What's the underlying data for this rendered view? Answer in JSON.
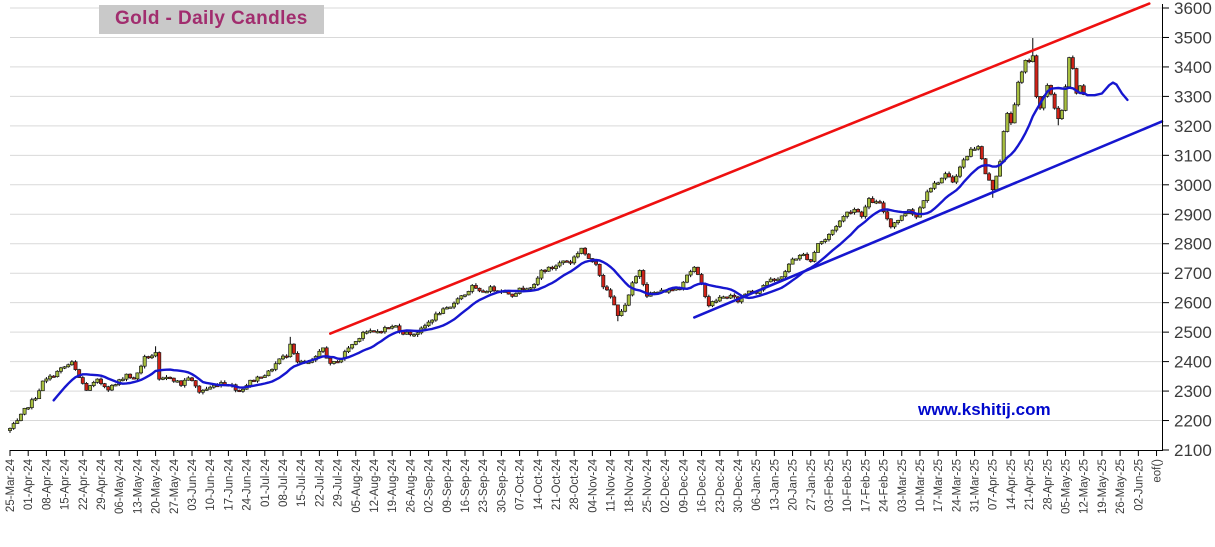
{
  "title": "Gold - Daily Candles",
  "watermark": "www.kshitij.com",
  "colors": {
    "up_candle": "#a7bf3f",
    "down_candle": "#cf2217",
    "candle_border": "#1a1a1a",
    "wick": "#000000",
    "moving_average": "#1616cf",
    "resistance_trendline": "#ee1010",
    "support_trendline": "#1616cf",
    "grid": "#d9d9d9",
    "axis": "#000000",
    "tick_text": "#3c3c3c",
    "title_text": "#a12d6e",
    "title_background": "#c9c9c9",
    "watermark_text": "#0008cc"
  },
  "chart_data": {
    "type": "candlestick",
    "title": "Gold - Daily Candles",
    "xlabel": "",
    "ylabel": "",
    "ylim": [
      2100,
      3600
    ],
    "grid": "horizontal-only",
    "legend": "none",
    "y_tick_step": 100,
    "y_tick_labels": [
      "3600",
      "3500",
      "3400",
      "3300",
      "3200",
      "3100",
      "3000",
      "2900",
      "2800",
      "2700",
      "2600",
      "2500",
      "2400",
      "2300",
      "2200",
      "2100"
    ],
    "x_tick_labels": [
      "25-Mar-24",
      "01-Apr-24",
      "08-Apr-24",
      "15-Apr-24",
      "22-Apr-24",
      "29-Apr-24",
      "06-May-24",
      "13-May-24",
      "20-May-24",
      "27-May-24",
      "03-Jun-24",
      "10-Jun-24",
      "17-Jun-24",
      "24-Jun-24",
      "01-Jul-24",
      "08-Jul-24",
      "15-Jul-24",
      "22-Jul-24",
      "29-Jul-24",
      "05-Aug-24",
      "12-Aug-24",
      "19-Aug-24",
      "26-Aug-24",
      "02-Sep-24",
      "09-Sep-24",
      "16-Sep-24",
      "23-Sep-24",
      "30-Sep-24",
      "07-Oct-24",
      "14-Oct-24",
      "21-Oct-24",
      "28-Oct-24",
      "04-Nov-24",
      "11-Nov-24",
      "18-Nov-24",
      "25-Nov-24",
      "02-Dec-24",
      "09-Dec-24",
      "16-Dec-24",
      "23-Dec-24",
      "30-Dec-24",
      "06-Jan-25",
      "13-Jan-25",
      "20-Jan-25",
      "27-Jan-25",
      "03-Feb-25",
      "10-Feb-25",
      "17-Feb-25",
      "24-Feb-25",
      "03-Mar-25",
      "10-Mar-25",
      "17-Mar-25",
      "24-Mar-25",
      "31-Mar-25",
      "07-Apr-25",
      "14-Apr-25",
      "21-Apr-25",
      "28-Apr-25",
      "05-May-25",
      "12-May-25",
      "19-May-25",
      "26-May-25",
      "02-Jun-25",
      "eof()"
    ],
    "slots_per_week": 5,
    "slot_span": 316.5,
    "candle_count": 296,
    "noise_seed": 7,
    "noise_amp": 13,
    "anchors": [
      [
        0,
        2172
      ],
      [
        2,
        2195
      ],
      [
        4,
        2235
      ],
      [
        7,
        2280
      ],
      [
        9,
        2330
      ],
      [
        12,
        2355
      ],
      [
        14,
        2375
      ],
      [
        17,
        2395
      ],
      [
        19,
        2345
      ],
      [
        21,
        2305
      ],
      [
        24,
        2335
      ],
      [
        27,
        2310
      ],
      [
        29,
        2322
      ],
      [
        32,
        2358
      ],
      [
        34,
        2338
      ],
      [
        37,
        2412
      ],
      [
        40,
        2425
      ],
      [
        41,
        2335
      ],
      [
        44,
        2348
      ],
      [
        47,
        2322
      ],
      [
        49,
        2348
      ],
      [
        52,
        2298
      ],
      [
        55,
        2312
      ],
      [
        58,
        2330
      ],
      [
        61,
        2318
      ],
      [
        63,
        2300
      ],
      [
        66,
        2332
      ],
      [
        69,
        2352
      ],
      [
        71,
        2362
      ],
      [
        74,
        2408
      ],
      [
        76,
        2422
      ],
      [
        77,
        2465
      ],
      [
        79,
        2398
      ],
      [
        82,
        2394
      ],
      [
        84,
        2412
      ],
      [
        86,
        2446
      ],
      [
        88,
        2388
      ],
      [
        91,
        2412
      ],
      [
        93,
        2448
      ],
      [
        95,
        2468
      ],
      [
        97,
        2502
      ],
      [
        100,
        2498
      ],
      [
        103,
        2512
      ],
      [
        106,
        2520
      ],
      [
        108,
        2498
      ],
      [
        111,
        2494
      ],
      [
        113,
        2508
      ],
      [
        116,
        2546
      ],
      [
        118,
        2568
      ],
      [
        121,
        2582
      ],
      [
        123,
        2618
      ],
      [
        125,
        2628
      ],
      [
        127,
        2654
      ],
      [
        129,
        2634
      ],
      [
        132,
        2648
      ],
      [
        135,
        2642
      ],
      [
        138,
        2628
      ],
      [
        141,
        2652
      ],
      [
        144,
        2656
      ],
      [
        146,
        2708
      ],
      [
        149,
        2718
      ],
      [
        152,
        2742
      ],
      [
        154,
        2738
      ],
      [
        157,
        2786
      ],
      [
        159,
        2744
      ],
      [
        161,
        2736
      ],
      [
        163,
        2658
      ],
      [
        165,
        2618
      ],
      [
        167,
        2562
      ],
      [
        169,
        2586
      ],
      [
        171,
        2662
      ],
      [
        173,
        2712
      ],
      [
        174,
        2668
      ],
      [
        175,
        2628
      ],
      [
        178,
        2636
      ],
      [
        181,
        2642
      ],
      [
        184,
        2652
      ],
      [
        186,
        2696
      ],
      [
        188,
        2718
      ],
      [
        190,
        2662
      ],
      [
        192,
        2592
      ],
      [
        195,
        2616
      ],
      [
        198,
        2622
      ],
      [
        200,
        2606
      ],
      [
        203,
        2642
      ],
      [
        205,
        2636
      ],
      [
        208,
        2672
      ],
      [
        211,
        2678
      ],
      [
        213,
        2706
      ],
      [
        215,
        2748
      ],
      [
        218,
        2762
      ],
      [
        220,
        2742
      ],
      [
        222,
        2802
      ],
      [
        224,
        2814
      ],
      [
        227,
        2862
      ],
      [
        230,
        2906
      ],
      [
        232,
        2918
      ],
      [
        234,
        2898
      ],
      [
        236,
        2948
      ],
      [
        239,
        2934
      ],
      [
        242,
        2862
      ],
      [
        245,
        2892
      ],
      [
        247,
        2918
      ],
      [
        249,
        2892
      ],
      [
        252,
        2982
      ],
      [
        254,
        3002
      ],
      [
        257,
        3032
      ],
      [
        259,
        3012
      ],
      [
        262,
        3082
      ],
      [
        264,
        3118
      ],
      [
        266,
        3134
      ],
      [
        268,
        3038
      ],
      [
        270,
        2986
      ],
      [
        272,
        3082
      ],
      [
        273,
        3178
      ],
      [
        274,
        3238
      ],
      [
        275,
        3212
      ],
      [
        277,
        3342
      ],
      [
        279,
        3418
      ],
      [
        280,
        3422
      ],
      [
        281,
        3435
      ],
      [
        282,
        3305
      ],
      [
        283,
        3262
      ],
      [
        285,
        3332
      ],
      [
        286,
        3308
      ],
      [
        287,
        3262
      ],
      [
        288,
        3228
      ],
      [
        289,
        3252
      ],
      [
        290,
        3330
      ],
      [
        291,
        3428
      ],
      [
        292,
        3392
      ],
      [
        293,
        3312
      ],
      [
        294,
        3330
      ],
      [
        295,
        3302
      ]
    ],
    "wick_overrides": [
      {
        "slot": 0,
        "low": 2158
      },
      {
        "slot": 40,
        "high": 2452
      },
      {
        "slot": 77,
        "high": 2484
      },
      {
        "slot": 167,
        "low": 2537
      },
      {
        "slot": 270,
        "low": 2956
      },
      {
        "slot": 281,
        "high": 3498
      },
      {
        "slot": 288,
        "low": 3202
      }
    ],
    "moving_average": {
      "period": 13
    },
    "ma_projection": [
      [
        296,
        3304
      ],
      [
        298,
        3304
      ],
      [
        300,
        3310
      ],
      [
        302,
        3338
      ],
      [
        303,
        3347
      ],
      [
        304,
        3340
      ],
      [
        305.5,
        3310
      ],
      [
        307,
        3288
      ]
    ],
    "trendlines": [
      {
        "name": "resistance",
        "from_slot": 88,
        "from_price": 2495,
        "to_slot": 313,
        "to_price": 3615
      },
      {
        "name": "support",
        "from_slot": 188,
        "from_price": 2550,
        "to_slot": 316.5,
        "to_price": 3215
      }
    ]
  }
}
